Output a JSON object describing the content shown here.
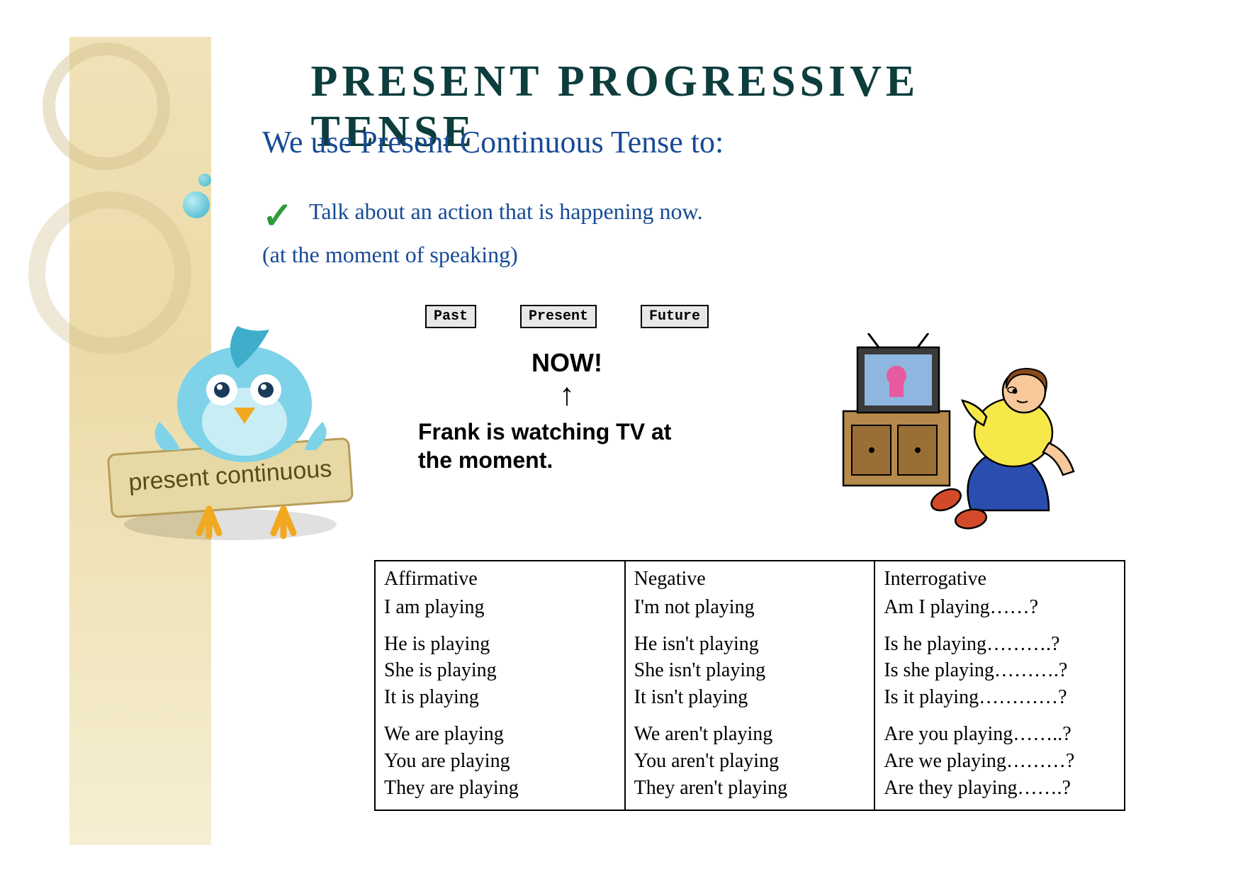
{
  "colors": {
    "title": "#0d3d3d",
    "subtitle": "#174a96",
    "bullet1": "#174a96",
    "bullet2": "#174a96",
    "check": "#2e9c3b",
    "bird_body": "#7fd3e8",
    "bird_dark": "#3eaecb",
    "bird_beak": "#f2a81f",
    "bird_feet": "#f2a81f",
    "sign_bg": "#e6d9a6",
    "sign_text": "#5a4a1a",
    "tv_cabinet": "#b58a4a",
    "tv_frame": "#3a3a3a",
    "tv_screen": "#8fb6e0",
    "boy_shirt": "#f7e84a",
    "boy_pants": "#2a4db0",
    "boy_skin": "#f7c99a",
    "boy_hair": "#8a4a1a",
    "boy_shoe": "#d34a2a"
  },
  "title": "PRESENT  PROGRESSIVE  TENSE",
  "subtitle": "We use Present Continuous Tense to:",
  "bullet_line1": "Talk about an action that is happening now.",
  "bullet_line2": "(at the moment of speaking)",
  "sign_label": "present continuous",
  "timeline": {
    "past": "Past",
    "present": "Present",
    "future": "Future",
    "now": "NOW!",
    "example1": "Frank is watching TV at",
    "example2": "the moment."
  },
  "table": {
    "headers": [
      "Affirmative",
      "Negative",
      "Interrogative"
    ],
    "groups": [
      [
        [
          "I am playing"
        ],
        [
          "I'm not playing"
        ],
        [
          "Am I playing……?"
        ]
      ],
      [
        [
          "He is playing",
          "She is playing",
          "It is playing"
        ],
        [
          "He isn't playing",
          "She isn't playing",
          "It isn't playing"
        ],
        [
          "Is he playing……….?",
          "Is she playing……….?",
          "Is it playing…………?"
        ]
      ],
      [
        [
          "We are playing",
          "You are playing",
          "They are playing"
        ],
        [
          "We aren't playing",
          "You aren't playing",
          "They aren't playing"
        ],
        [
          "Are you playing……..?",
          "Are we playing………?",
          "Are they playing…….?"
        ]
      ]
    ]
  }
}
